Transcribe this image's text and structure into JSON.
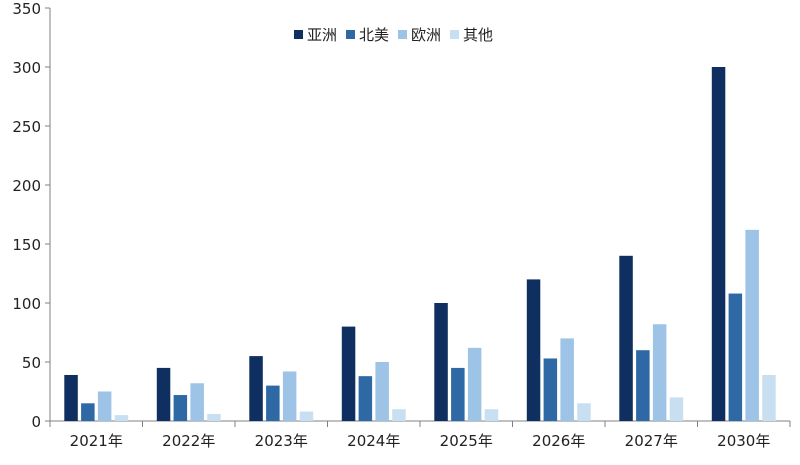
{
  "chart_data": {
    "type": "bar",
    "categories": [
      "2021年",
      "2022年",
      "2023年",
      "2024年",
      "2025年",
      "2026年",
      "2027年",
      "2030年"
    ],
    "series": [
      {
        "name": "亚洲",
        "color": "#0e2f5f",
        "values": [
          39,
          45,
          55,
          80,
          100,
          120,
          140,
          300
        ]
      },
      {
        "name": "北美",
        "color": "#2e69a6",
        "values": [
          15,
          22,
          30,
          38,
          45,
          53,
          60,
          108
        ]
      },
      {
        "name": "欧洲",
        "color": "#9dc3e6",
        "values": [
          25,
          32,
          42,
          50,
          62,
          70,
          82,
          162
        ]
      },
      {
        "name": "其他",
        "color": "#c8dff2",
        "values": [
          5,
          6,
          8,
          10,
          10,
          15,
          20,
          39
        ]
      }
    ],
    "ylim": [
      0,
      350
    ],
    "yticks": [
      0,
      50,
      100,
      150,
      200,
      250,
      300,
      350
    ],
    "grid": false,
    "legend_position": "top-center"
  }
}
